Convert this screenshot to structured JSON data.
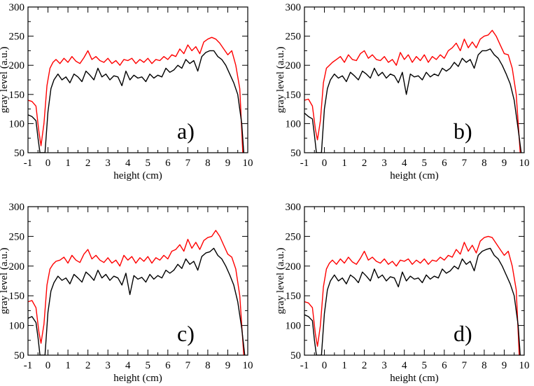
{
  "figure": {
    "xlabel": "height (cm)",
    "ylabel": "gray level (a.u.)"
  },
  "chart_data": [
    {
      "type": "line",
      "panel_label": "a)",
      "xlabel": "height (cm)",
      "ylabel": "gray level (a.u.)",
      "xlim": [
        -1,
        10
      ],
      "ylim": [
        50,
        300
      ],
      "xticks": [
        -1,
        0,
        1,
        2,
        3,
        4,
        5,
        6,
        7,
        8,
        9,
        10
      ],
      "yticks": [
        50,
        100,
        150,
        200,
        250,
        300
      ],
      "grid": false,
      "series": [
        {
          "color": "#ff0000",
          "x": [
            -1.0,
            -0.8,
            -0.6,
            -0.45,
            -0.35,
            -0.2,
            -0.05,
            0.1,
            0.25,
            0.4,
            0.6,
            0.8,
            1.0,
            1.2,
            1.4,
            1.6,
            1.8,
            2.0,
            2.2,
            2.4,
            2.6,
            2.8,
            3.0,
            3.2,
            3.4,
            3.6,
            3.8,
            4.0,
            4.2,
            4.4,
            4.6,
            4.8,
            5.0,
            5.2,
            5.4,
            5.6,
            5.8,
            6.0,
            6.2,
            6.4,
            6.6,
            6.8,
            7.0,
            7.2,
            7.4,
            7.6,
            7.8,
            8.0,
            8.2,
            8.4,
            8.6,
            8.8,
            9.0,
            9.2,
            9.4,
            9.6,
            9.75
          ],
          "y": [
            140,
            138,
            130,
            85,
            62,
            100,
            165,
            195,
            205,
            210,
            203,
            212,
            205,
            215,
            207,
            203,
            213,
            225,
            210,
            215,
            208,
            205,
            212,
            203,
            208,
            200,
            210,
            208,
            212,
            203,
            210,
            205,
            212,
            203,
            210,
            208,
            215,
            210,
            218,
            215,
            228,
            220,
            235,
            225,
            232,
            220,
            240,
            245,
            248,
            245,
            238,
            228,
            218,
            225,
            200,
            160,
            50
          ]
        },
        {
          "color": "#000000",
          "x": [
            -1.0,
            -0.8,
            -0.6,
            -0.5,
            -0.4,
            -0.3,
            -0.15,
            0.0,
            0.15,
            0.3,
            0.5,
            0.7,
            0.9,
            1.1,
            1.3,
            1.5,
            1.7,
            1.9,
            2.1,
            2.3,
            2.5,
            2.7,
            2.9,
            3.1,
            3.3,
            3.5,
            3.7,
            3.9,
            4.1,
            4.3,
            4.5,
            4.7,
            4.9,
            5.1,
            5.3,
            5.5,
            5.7,
            5.9,
            6.1,
            6.3,
            6.5,
            6.7,
            6.9,
            7.1,
            7.3,
            7.5,
            7.7,
            7.9,
            8.1,
            8.3,
            8.5,
            8.7,
            8.9,
            9.1,
            9.3,
            9.5,
            9.7,
            9.8
          ],
          "y": [
            115,
            112,
            105,
            75,
            50,
            50,
            50,
            120,
            160,
            175,
            185,
            175,
            180,
            170,
            185,
            180,
            172,
            190,
            183,
            175,
            195,
            180,
            185,
            175,
            182,
            180,
            165,
            190,
            175,
            183,
            178,
            180,
            172,
            185,
            178,
            183,
            180,
            195,
            188,
            192,
            200,
            195,
            210,
            203,
            208,
            190,
            215,
            222,
            225,
            225,
            215,
            210,
            200,
            185,
            170,
            150,
            100,
            50
          ]
        }
      ]
    },
    {
      "type": "line",
      "panel_label": "b)",
      "xlabel": "height (cm)",
      "ylabel": "gray level (a.u.)",
      "xlim": [
        -1,
        10
      ],
      "ylim": [
        50,
        300
      ],
      "xticks": [
        -1,
        0,
        1,
        2,
        3,
        4,
        5,
        6,
        7,
        8,
        9,
        10
      ],
      "yticks": [
        50,
        100,
        150,
        200,
        250,
        300
      ],
      "grid": false,
      "series": [
        {
          "color": "#ff0000",
          "x": [
            -1.0,
            -0.8,
            -0.6,
            -0.45,
            -0.35,
            -0.2,
            -0.05,
            0.1,
            0.25,
            0.4,
            0.6,
            0.8,
            1.0,
            1.2,
            1.4,
            1.6,
            1.8,
            2.0,
            2.2,
            2.4,
            2.6,
            2.8,
            3.0,
            3.2,
            3.4,
            3.6,
            3.8,
            4.0,
            4.2,
            4.4,
            4.6,
            4.8,
            5.0,
            5.2,
            5.4,
            5.6,
            5.8,
            6.0,
            6.2,
            6.4,
            6.6,
            6.8,
            7.0,
            7.2,
            7.4,
            7.6,
            7.8,
            8.0,
            8.2,
            8.4,
            8.6,
            8.8,
            9.0,
            9.2,
            9.4,
            9.6,
            9.8
          ],
          "y": [
            140,
            142,
            130,
            90,
            72,
            105,
            170,
            195,
            200,
            205,
            210,
            215,
            205,
            218,
            210,
            208,
            220,
            225,
            212,
            218,
            210,
            208,
            215,
            205,
            210,
            200,
            222,
            210,
            218,
            205,
            215,
            208,
            218,
            205,
            215,
            210,
            218,
            212,
            225,
            230,
            238,
            225,
            245,
            230,
            240,
            230,
            245,
            250,
            252,
            260,
            250,
            235,
            220,
            218,
            195,
            150,
            50
          ]
        },
        {
          "color": "#000000",
          "x": [
            -1.0,
            -0.8,
            -0.6,
            -0.5,
            -0.4,
            -0.3,
            -0.15,
            0.0,
            0.15,
            0.3,
            0.5,
            0.7,
            0.9,
            1.1,
            1.3,
            1.5,
            1.7,
            1.9,
            2.1,
            2.3,
            2.5,
            2.7,
            2.9,
            3.1,
            3.3,
            3.5,
            3.7,
            3.9,
            4.1,
            4.3,
            4.5,
            4.7,
            4.9,
            5.1,
            5.3,
            5.5,
            5.7,
            5.9,
            6.1,
            6.3,
            6.5,
            6.7,
            6.9,
            7.1,
            7.3,
            7.5,
            7.7,
            7.9,
            8.1,
            8.3,
            8.5,
            8.7,
            8.9,
            9.1,
            9.3,
            9.5,
            9.7,
            9.85
          ],
          "y": [
            118,
            112,
            108,
            80,
            50,
            50,
            50,
            125,
            160,
            175,
            185,
            178,
            182,
            172,
            188,
            182,
            175,
            190,
            185,
            178,
            195,
            182,
            188,
            178,
            185,
            182,
            170,
            188,
            150,
            185,
            180,
            182,
            175,
            188,
            180,
            185,
            182,
            195,
            190,
            195,
            205,
            198,
            212,
            205,
            210,
            195,
            218,
            225,
            225,
            228,
            218,
            212,
            200,
            185,
            168,
            140,
            90,
            50
          ]
        }
      ]
    },
    {
      "type": "line",
      "panel_label": "c)",
      "xlabel": "height (cm)",
      "ylabel": "gray level (a.u.)",
      "xlim": [
        -1,
        10
      ],
      "ylim": [
        50,
        300
      ],
      "xticks": [
        -1,
        0,
        1,
        2,
        3,
        4,
        5,
        6,
        7,
        8,
        9,
        10
      ],
      "yticks": [
        50,
        100,
        150,
        200,
        250,
        300
      ],
      "grid": false,
      "series": [
        {
          "color": "#ff0000",
          "x": [
            -1.0,
            -0.8,
            -0.6,
            -0.45,
            -0.35,
            -0.2,
            -0.05,
            0.1,
            0.25,
            0.4,
            0.6,
            0.8,
            1.0,
            1.2,
            1.4,
            1.6,
            1.8,
            2.0,
            2.2,
            2.4,
            2.6,
            2.8,
            3.0,
            3.2,
            3.4,
            3.6,
            3.8,
            4.0,
            4.2,
            4.4,
            4.6,
            4.8,
            5.0,
            5.2,
            5.4,
            5.6,
            5.8,
            6.0,
            6.2,
            6.4,
            6.6,
            6.8,
            7.0,
            7.2,
            7.4,
            7.6,
            7.8,
            8.0,
            8.2,
            8.4,
            8.6,
            8.8,
            9.0,
            9.2,
            9.4,
            9.6,
            9.8
          ],
          "y": [
            140,
            142,
            130,
            88,
            70,
            102,
            168,
            195,
            203,
            208,
            210,
            215,
            205,
            218,
            210,
            206,
            220,
            228,
            212,
            218,
            210,
            206,
            214,
            205,
            210,
            200,
            218,
            210,
            216,
            205,
            214,
            208,
            216,
            205,
            214,
            210,
            218,
            212,
            225,
            228,
            236,
            225,
            245,
            230,
            240,
            228,
            243,
            248,
            250,
            260,
            250,
            235,
            220,
            215,
            195,
            150,
            50
          ]
        },
        {
          "color": "#000000",
          "x": [
            -1.0,
            -0.8,
            -0.6,
            -0.5,
            -0.4,
            -0.3,
            -0.15,
            0.0,
            0.15,
            0.3,
            0.5,
            0.7,
            0.9,
            1.1,
            1.3,
            1.5,
            1.7,
            1.9,
            2.1,
            2.3,
            2.5,
            2.7,
            2.9,
            3.1,
            3.3,
            3.5,
            3.7,
            3.9,
            4.1,
            4.3,
            4.5,
            4.7,
            4.9,
            5.1,
            5.3,
            5.5,
            5.7,
            5.9,
            6.1,
            6.3,
            6.5,
            6.7,
            6.9,
            7.1,
            7.3,
            7.5,
            7.7,
            7.9,
            8.1,
            8.3,
            8.5,
            8.7,
            8.9,
            9.1,
            9.3,
            9.5,
            9.7,
            9.85
          ],
          "y": [
            112,
            115,
            105,
            80,
            50,
            50,
            50,
            122,
            158,
            172,
            183,
            176,
            180,
            170,
            186,
            180,
            173,
            190,
            184,
            176,
            193,
            180,
            186,
            176,
            183,
            180,
            168,
            188,
            152,
            184,
            178,
            181,
            173,
            186,
            178,
            184,
            180,
            193,
            188,
            193,
            203,
            196,
            212,
            203,
            208,
            193,
            216,
            222,
            224,
            230,
            218,
            212,
            200,
            185,
            168,
            140,
            95,
            50
          ]
        }
      ]
    },
    {
      "type": "line",
      "panel_label": "d)",
      "xlabel": "height (cm)",
      "ylabel": "gray level (a.u.)",
      "xlim": [
        -1,
        10
      ],
      "ylim": [
        50,
        300
      ],
      "xticks": [
        -1,
        0,
        1,
        2,
        3,
        4,
        5,
        6,
        7,
        8,
        9,
        10
      ],
      "yticks": [
        50,
        100,
        150,
        200,
        250,
        300
      ],
      "grid": false,
      "series": [
        {
          "color": "#ff0000",
          "x": [
            -1.0,
            -0.8,
            -0.6,
            -0.45,
            -0.35,
            -0.2,
            -0.05,
            0.1,
            0.25,
            0.4,
            0.6,
            0.8,
            1.0,
            1.2,
            1.4,
            1.6,
            1.8,
            2.0,
            2.2,
            2.4,
            2.6,
            2.8,
            3.0,
            3.2,
            3.4,
            3.6,
            3.8,
            4.0,
            4.2,
            4.4,
            4.6,
            4.8,
            5.0,
            5.2,
            5.4,
            5.6,
            5.8,
            6.0,
            6.2,
            6.4,
            6.6,
            6.8,
            7.0,
            7.2,
            7.4,
            7.6,
            7.8,
            8.0,
            8.2,
            8.4,
            8.6,
            8.8,
            9.0,
            9.2,
            9.4,
            9.6,
            9.75
          ],
          "y": [
            140,
            138,
            130,
            85,
            65,
            100,
            165,
            195,
            205,
            210,
            203,
            212,
            205,
            215,
            207,
            203,
            213,
            225,
            210,
            215,
            208,
            205,
            212,
            203,
            208,
            200,
            210,
            208,
            212,
            203,
            210,
            205,
            212,
            203,
            210,
            208,
            215,
            210,
            218,
            215,
            228,
            220,
            240,
            225,
            235,
            222,
            242,
            248,
            250,
            248,
            238,
            228,
            218,
            225,
            200,
            160,
            50
          ]
        },
        {
          "color": "#000000",
          "x": [
            -1.0,
            -0.8,
            -0.6,
            -0.5,
            -0.4,
            -0.3,
            -0.15,
            0.0,
            0.15,
            0.3,
            0.5,
            0.7,
            0.9,
            1.1,
            1.3,
            1.5,
            1.7,
            1.9,
            2.1,
            2.3,
            2.5,
            2.7,
            2.9,
            3.1,
            3.3,
            3.5,
            3.7,
            3.9,
            4.1,
            4.3,
            4.5,
            4.7,
            4.9,
            5.1,
            5.3,
            5.5,
            5.7,
            5.9,
            6.1,
            6.3,
            6.5,
            6.7,
            6.9,
            7.1,
            7.3,
            7.5,
            7.7,
            7.9,
            8.1,
            8.3,
            8.5,
            8.7,
            8.9,
            9.1,
            9.3,
            9.5,
            9.7,
            9.8
          ],
          "y": [
            118,
            115,
            108,
            75,
            50,
            50,
            50,
            120,
            160,
            175,
            185,
            175,
            180,
            170,
            185,
            180,
            172,
            190,
            183,
            175,
            195,
            180,
            185,
            175,
            182,
            180,
            165,
            190,
            175,
            183,
            178,
            180,
            172,
            185,
            178,
            183,
            180,
            195,
            188,
            192,
            200,
            195,
            212,
            203,
            208,
            192,
            218,
            225,
            228,
            230,
            218,
            212,
            200,
            185,
            170,
            150,
            100,
            50
          ]
        }
      ]
    }
  ]
}
